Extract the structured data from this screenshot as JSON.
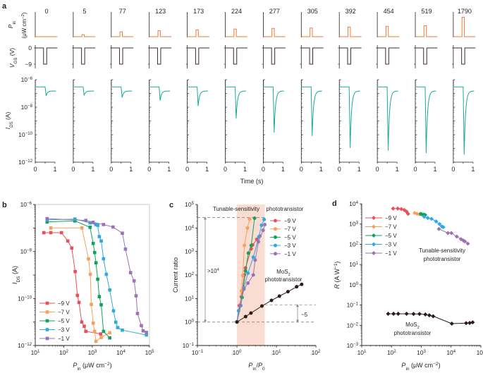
{
  "colors": {
    "m9": "#e8505b",
    "m7": "#f4a15d",
    "m5": "#13a05b",
    "m3": "#2fa9e1",
    "m1": "#9a74b2",
    "mos2": "#2b1b1b",
    "pin": "#f07a3a",
    "vgs": "#3b2c2a",
    "ids": "#1aa898",
    "shade": "#f9ddd3",
    "axis": "#231f20"
  },
  "chart_data": [
    {
      "panel_label": "a",
      "type": "line",
      "pin_values": [
        "0",
        "5",
        "77",
        "123",
        "173",
        "224",
        "277",
        "305",
        "392",
        "454",
        "519",
        "1790"
      ],
      "pin_label": {
        "main": "P",
        "sub": "in",
        "unit_open": "(μW cm",
        "unit_sup": "−2",
        "unit_close": ")"
      },
      "vgs_label": {
        "main": "V",
        "sub": "GS",
        "rest": " (V)"
      },
      "ids_label": {
        "main": "I",
        "sub": "DS",
        "rest": " (A)"
      },
      "xlabel": "Time (s)",
      "x_ticks": [
        "0",
        "1"
      ],
      "vgs_ticks": [
        "0",
        "−9"
      ],
      "vgs_levels": [
        0,
        -9
      ],
      "ids_ticks": [
        {
          "base": "10",
          "exp": "−6"
        },
        {
          "base": "10",
          "exp": "−8"
        },
        {
          "base": "10",
          "exp": "−10"
        },
        {
          "base": "10",
          "exp": "−12"
        }
      ],
      "ids_range_log": [
        -12,
        -6
      ],
      "ids_baseline": 3e-07,
      "ids_recovered": 1.5e-07,
      "ids_minimum": [
        6.6e-08,
        7e-08,
        5e-08,
        3e-08,
        1.2e-08,
        1.5e-09,
        1.4e-10,
        8e-11,
        1.1e-11,
        7e-12,
        4.5e-12,
        3.5e-12
      ]
    },
    {
      "panel_label": "b",
      "type": "line",
      "xlabel": {
        "main": "P",
        "sub": "in",
        "rest": " (μW cm",
        "sup": "−2",
        "end": ")"
      },
      "ylabel": {
        "main": "I",
        "sub": "DS",
        "rest": " (A)"
      },
      "x_scale": "log",
      "y_scale": "log",
      "xlim": [
        10,
        100000
      ],
      "ylim": [
        1e-12,
        1e-06
      ],
      "x_ticks": [
        {
          "base": "10",
          "exp": "1"
        },
        {
          "base": "10",
          "exp": "2"
        },
        {
          "base": "10",
          "exp": "3"
        },
        {
          "base": "10",
          "exp": "4"
        },
        {
          "base": "10",
          "exp": "5"
        }
      ],
      "y_ticks": [
        {
          "base": "10",
          "exp": "−12"
        },
        {
          "base": "10",
          "exp": "−10"
        },
        {
          "base": "10",
          "exp": "−8"
        },
        {
          "base": "10",
          "exp": "−6"
        }
      ],
      "y_tick_values": [
        1e-12,
        1e-10,
        1e-08,
        1e-06
      ],
      "legend": "bottom-left",
      "marker": "square",
      "series": [
        {
          "name": "−9 V",
          "color_key": "m9",
          "x": [
            20,
            35,
            83,
            138,
            190,
            250,
            300,
            340,
            425,
            520,
            590,
            1950
          ],
          "y": [
            6.3e-08,
            6.3e-08,
            6.3e-08,
            2.8e-08,
            1.4e-08,
            1.4e-09,
            1.35e-10,
            6.8e-11,
            1e-11,
            6.6e-12,
            4e-12,
            3.1e-12
          ]
        },
        {
          "name": "−7 V",
          "color_key": "m7",
          "x": [
            35,
            430,
            730,
            850,
            920,
            1070,
            1200,
            1340,
            2040,
            4060
          ],
          "y": [
            1e-07,
            1e-07,
            4.8e-09,
            1.07e-09,
            5.6e-11,
            8.9e-12,
            4e-12,
            1.5e-12,
            2.2e-12,
            3.5e-12
          ]
        },
        {
          "name": "−5 V",
          "color_key": "m5",
          "x": [
            26,
            245,
            830,
            1070,
            1200,
            1340,
            1540,
            1750,
            2040,
            2460,
            4060
          ],
          "y": [
            1.8e-07,
            2e-07,
            1.07e-07,
            2.2e-08,
            9e-09,
            3.3e-09,
            6.6e-10,
            1.2e-10,
            5.4e-11,
            4e-12,
            2.1e-12
          ]
        },
        {
          "name": "−3 V",
          "color_key": "m3",
          "x": [
            26,
            245,
            830,
            1320,
            1540,
            1750,
            2040,
            2460,
            3080,
            4060,
            5500,
            6600,
            7700,
            11200,
            78000
          ],
          "y": [
            2.2e-07,
            2.4e-07,
            1.65e-07,
            1.4e-07,
            1.3e-07,
            4.3e-08,
            2.8e-08,
            4.9e-09,
            1.07e-09,
            2.3e-10,
            3e-11,
            9.8e-12,
            5.8e-12,
            4.5e-12,
            2.8e-12
          ]
        },
        {
          "name": "−1 V",
          "color_key": "m1",
          "x": [
            26,
            590,
            1050,
            2460,
            5300,
            11200,
            14400,
            21800,
            29000,
            34000,
            38000,
            52000,
            60000,
            78000
          ],
          "y": [
            2.5e-07,
            2.1e-07,
            1.74e-07,
            1.4e-07,
            1.1e-07,
            6e-08,
            1.26e-08,
            1.26e-09,
            5.6e-10,
            1.3e-10,
            2.3e-11,
            7e-12,
            4.2e-12,
            3.6e-12
          ]
        }
      ]
    },
    {
      "panel_label": "c",
      "type": "line",
      "xlabel": {
        "main": "P",
        "sub": "in",
        "mid": "/",
        "main2": "P",
        "sub2": "0"
      },
      "ylabel": "Current ratio",
      "x_scale": "log",
      "y_scale": "log",
      "xlim": [
        0.1,
        100
      ],
      "ylim": [
        0.1,
        100000
      ],
      "x_ticks": [
        {
          "base": "10",
          "exp": "−1"
        },
        {
          "base": "10",
          "exp": "0"
        },
        {
          "base": "10",
          "exp": "1"
        },
        {
          "base": "10",
          "exp": "2"
        }
      ],
      "y_ticks": [
        {
          "base": "10",
          "exp": "−1"
        },
        {
          "base": "10",
          "exp": "0"
        },
        {
          "base": "10",
          "exp": "1"
        },
        {
          "base": "10",
          "exp": "2"
        },
        {
          "base": "10",
          "exp": "3"
        },
        {
          "base": "10",
          "exp": "4"
        },
        {
          "base": "10",
          "exp": "5"
        }
      ],
      "legend": "top-right",
      "marker": "circle",
      "shaded_x_range": [
        1,
        5.1
      ],
      "reference_levels": {
        "top": 28000,
        "unity": 1,
        "mos2_max": 5.4
      },
      "annotations": {
        "title_left": "Tunable-sensitivity",
        "title_right": "phototransistor",
        "ratio_big": {
          "prefix": ">10",
          "exp": "4"
        },
        "ratio_small": "~5",
        "mos2": {
          "main": "MoS",
          "sub": "2",
          "line2": "phototransistor"
        }
      },
      "series": [
        {
          "name": "−9 V",
          "color_key": "m9",
          "x": [
            1,
            1.15,
            1.3,
            1.55,
            1.65,
            2.3,
            2.5,
            3.2,
            3.8
          ],
          "y": [
            1,
            5,
            12,
            100,
            200,
            1300,
            1900,
            3300,
            4500
          ]
        },
        {
          "name": "−7 V",
          "color_key": "m7",
          "x": [
            1,
            1.2,
            1.3,
            1.4,
            1.55,
            1.85,
            2.1
          ],
          "y": [
            1,
            5,
            21,
            95,
            1800,
            10000,
            24000
          ]
        },
        {
          "name": "−5 V",
          "color_key": "m5",
          "x": [
            1,
            1.25,
            1.35,
            1.65,
            1.95,
            2.3,
            2.8
          ],
          "y": [
            1,
            5,
            11,
            150,
            850,
            1800,
            26000
          ]
        },
        {
          "name": "−3 V",
          "color_key": "m3",
          "x": [
            1,
            1.1,
            1.25,
            1.5,
            1.9,
            2.6,
            3.6,
            4.2,
            4.9
          ],
          "y": [
            1,
            3,
            5,
            28,
            120,
            570,
            4200,
            13000,
            23000
          ]
        },
        {
          "name": "−1 V",
          "color_key": "m1",
          "x": [
            1,
            1.2,
            1.5,
            1.9,
            2.6,
            2.9,
            3.5,
            4.6,
            5.1
          ],
          "y": [
            1,
            5,
            25,
            45,
            100,
            430,
            2600,
            8000,
            14000
          ]
        },
        {
          "name": "MoS2",
          "color_key": "mos2",
          "x": [
            1,
            1.66,
            2.27,
            4.3,
            7.5,
            11.9,
            19.6,
            32.5,
            43.7
          ],
          "y": [
            1,
            1.7,
            2.4,
            4.8,
            8.3,
            12.6,
            19.5,
            31.6,
            40
          ]
        }
      ]
    },
    {
      "panel_label": "d",
      "type": "line",
      "xlabel": {
        "main": "P",
        "sub": "in",
        "rest": " (μW cm",
        "sup": "−2",
        "end": ")"
      },
      "ylabel": {
        "main": "R",
        "rest": " (A W",
        "sup": "−1",
        "end": ")"
      },
      "x_scale": "log",
      "y_scale": "log",
      "xlim": [
        10,
        100000
      ],
      "ylim": [
        0.001,
        10000
      ],
      "x_ticks": [
        {
          "base": "10",
          "exp": "1"
        },
        {
          "base": "10",
          "exp": "2"
        },
        {
          "base": "10",
          "exp": "3"
        },
        {
          "base": "10",
          "exp": "4"
        },
        {
          "base": "10",
          "exp": "5"
        }
      ],
      "y_ticks": [
        {
          "base": "10",
          "exp": "−3"
        },
        {
          "base": "10",
          "exp": "−2"
        },
        {
          "base": "10",
          "exp": "−1"
        },
        {
          "base": "10",
          "exp": "0"
        },
        {
          "base": "10",
          "exp": "1"
        },
        {
          "base": "10",
          "exp": "2"
        },
        {
          "base": "10",
          "exp": "3"
        },
        {
          "base": "10",
          "exp": "4"
        }
      ],
      "legend": "top-left",
      "marker": "diamond",
      "annotations": {
        "tunable": {
          "line1": "Tunable-sensitivity",
          "line2": "phototransistor"
        },
        "mos2": {
          "main": "MoS",
          "sub": "2",
          "line2": "phototransistor"
        }
      },
      "series": [
        {
          "name": "−9 V",
          "color_key": "m9",
          "x": [
            113,
            162,
            214,
            270,
            320,
            360
          ],
          "y": [
            5800,
            5800,
            5500,
            4900,
            4100,
            3200
          ]
        },
        {
          "name": "−7 V",
          "color_key": "m7",
          "x": [
            600,
            720,
            870
          ],
          "y": [
            3500,
            3200,
            3000
          ]
        },
        {
          "name": "−5 V",
          "color_key": "m5",
          "x": [
            950,
            1050,
            1200,
            1350
          ],
          "y": [
            3200,
            3000,
            2900,
            2800
          ]
        },
        {
          "name": "−3 V",
          "color_key": "m3",
          "x": [
            1250,
            1650,
            2200,
            3150,
            4100,
            4900,
            5500
          ],
          "y": [
            2300,
            2000,
            1800,
            1350,
            1000,
            750,
            700
          ]
        },
        {
          "name": "−1 V",
          "color_key": "m1",
          "x": [
            3900,
            7800,
            10200,
            15500,
            21400,
            25600,
            29000,
            36500
          ],
          "y": [
            570,
            360,
            360,
            240,
            180,
            155,
            139,
            108
          ]
        },
        {
          "name": "MoS2",
          "color_key": "mos2",
          "x": [
            77,
            117,
            168,
            320,
            550,
            870,
            1370,
            1860,
            2500,
            10600,
            32000,
            42000,
            53000
          ],
          "y": [
            0.037,
            0.037,
            0.037,
            0.037,
            0.036,
            0.036,
            0.034,
            0.031,
            0.028,
            0.012,
            0.0127,
            0.013,
            0.014
          ]
        }
      ]
    }
  ]
}
